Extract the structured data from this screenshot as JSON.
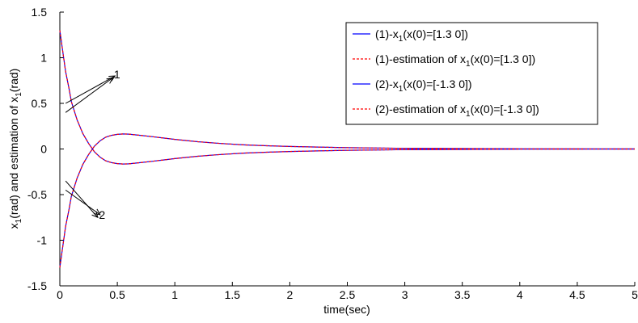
{
  "chart_data": {
    "type": "line",
    "title": "",
    "xlabel": "time(sec)",
    "ylabel": {
      "prefix": "x",
      "sub": "1",
      "suffix": "(rad) and estimation of x",
      "sub2": "1",
      "tail": "(rad)"
    },
    "xlim": [
      0,
      5
    ],
    "ylim": [
      -1.5,
      1.5
    ],
    "x_ticks": [
      {
        "v": 0,
        "label": "0"
      },
      {
        "v": 0.5,
        "label": "0.5"
      },
      {
        "v": 1,
        "label": "1"
      },
      {
        "v": 1.5,
        "label": "1.5"
      },
      {
        "v": 2,
        "label": "2"
      },
      {
        "v": 2.5,
        "label": "2.5"
      },
      {
        "v": 3,
        "label": "3"
      },
      {
        "v": 3.5,
        "label": "3.5"
      },
      {
        "v": 4,
        "label": "4"
      },
      {
        "v": 4.5,
        "label": "4.5"
      },
      {
        "v": 5,
        "label": "5"
      }
    ],
    "y_ticks": [
      {
        "v": -1.5,
        "label": "-1.5"
      },
      {
        "v": -1,
        "label": "-1"
      },
      {
        "v": -0.5,
        "label": "-0.5"
      },
      {
        "v": 0,
        "label": "0"
      },
      {
        "v": 0.5,
        "label": "0.5"
      },
      {
        "v": 1,
        "label": "1"
      },
      {
        "v": 1.5,
        "label": "1.5"
      }
    ],
    "grid": false,
    "legend_position": "top-right",
    "series": [
      {
        "id": "s1",
        "legend": {
          "prefix": "(1)-x",
          "sub": "1",
          "suffix": "(x(0)=[1.3 0])"
        },
        "color": "#0000ff",
        "dash": "solid",
        "x": [
          0,
          0.02,
          0.05,
          0.08,
          0.1,
          0.15,
          0.2,
          0.25,
          0.3,
          0.35,
          0.4,
          0.45,
          0.5,
          0.55,
          0.6,
          0.7,
          0.8,
          0.9,
          1.0,
          1.2,
          1.4,
          1.6,
          1.8,
          2.0,
          2.5,
          3.0,
          3.5,
          4.0,
          4.5,
          5.0
        ],
        "y": [
          1.3,
          1.12,
          0.85,
          0.66,
          0.52,
          0.32,
          0.17,
          0.06,
          -0.03,
          -0.09,
          -0.13,
          -0.15,
          -0.16,
          -0.165,
          -0.163,
          -0.15,
          -0.135,
          -0.12,
          -0.105,
          -0.08,
          -0.06,
          -0.045,
          -0.035,
          -0.027,
          -0.014,
          -0.007,
          -0.004,
          -0.002,
          -0.001,
          0
        ]
      },
      {
        "id": "s2",
        "legend": {
          "prefix": "(1)-estimation of x",
          "sub": "1",
          "suffix": "(x(0)=[1.3  0])"
        },
        "color": "#ff0000",
        "dash": "dashed",
        "x": [
          0,
          0.02,
          0.05,
          0.08,
          0.1,
          0.15,
          0.2,
          0.25,
          0.3,
          0.35,
          0.4,
          0.45,
          0.5,
          0.55,
          0.6,
          0.7,
          0.8,
          0.9,
          1.0,
          1.2,
          1.4,
          1.6,
          1.8,
          2.0,
          2.5,
          3.0,
          3.5,
          4.0,
          4.5,
          5.0
        ],
        "y": [
          1.3,
          1.12,
          0.85,
          0.66,
          0.52,
          0.32,
          0.17,
          0.06,
          -0.03,
          -0.09,
          -0.13,
          -0.15,
          -0.16,
          -0.165,
          -0.163,
          -0.15,
          -0.135,
          -0.12,
          -0.105,
          -0.08,
          -0.06,
          -0.045,
          -0.035,
          -0.027,
          -0.014,
          -0.007,
          -0.004,
          -0.002,
          -0.001,
          0
        ]
      },
      {
        "id": "s3",
        "legend": {
          "prefix": "(2)-x",
          "sub": "1",
          "suffix": "(x(0)=[-1.3 0])"
        },
        "color": "#0000ff",
        "dash": "solid",
        "x": [
          0,
          0.02,
          0.05,
          0.08,
          0.1,
          0.15,
          0.2,
          0.25,
          0.3,
          0.35,
          0.4,
          0.45,
          0.5,
          0.55,
          0.6,
          0.7,
          0.8,
          0.9,
          1.0,
          1.2,
          1.4,
          1.6,
          1.8,
          2.0,
          2.5,
          3.0,
          3.5,
          4.0,
          4.5,
          5.0
        ],
        "y": [
          -1.3,
          -1.12,
          -0.85,
          -0.66,
          -0.52,
          -0.32,
          -0.17,
          -0.06,
          0.03,
          0.09,
          0.13,
          0.15,
          0.16,
          0.165,
          0.163,
          0.15,
          0.135,
          0.12,
          0.105,
          0.08,
          0.06,
          0.045,
          0.035,
          0.027,
          0.014,
          0.007,
          0.004,
          0.002,
          0.001,
          0
        ]
      },
      {
        "id": "s4",
        "legend": {
          "prefix": "(2)-estimation of x",
          "sub": "1",
          "suffix": "(x(0)=[-1.3  0])"
        },
        "color": "#ff0000",
        "dash": "dashed",
        "x": [
          0,
          0.02,
          0.05,
          0.08,
          0.1,
          0.15,
          0.2,
          0.25,
          0.3,
          0.35,
          0.4,
          0.45,
          0.5,
          0.55,
          0.6,
          0.7,
          0.8,
          0.9,
          1.0,
          1.2,
          1.4,
          1.6,
          1.8,
          2.0,
          2.5,
          3.0,
          3.5,
          4.0,
          4.5,
          5.0
        ],
        "y": [
          -1.3,
          -1.12,
          -0.85,
          -0.66,
          -0.52,
          -0.32,
          -0.17,
          -0.06,
          0.03,
          0.09,
          0.13,
          0.15,
          0.16,
          0.165,
          0.163,
          0.15,
          0.135,
          0.12,
          0.105,
          0.08,
          0.06,
          0.045,
          0.035,
          0.027,
          0.014,
          0.007,
          0.004,
          0.002,
          0.001,
          0
        ]
      }
    ],
    "annotations": [
      {
        "label": "1",
        "text_at": [
          0.47,
          0.82
        ],
        "arrows": [
          {
            "from": [
              0.05,
              0.4
            ],
            "to": [
              0.46,
              0.78
            ]
          },
          {
            "from": [
              0.05,
              0.5
            ],
            "to": [
              0.48,
              0.8
            ]
          }
        ]
      },
      {
        "label": "2",
        "text_at": [
          0.34,
          -0.72
        ],
        "arrows": [
          {
            "from": [
              0.05,
              -0.35
            ],
            "to": [
              0.33,
              -0.75
            ]
          },
          {
            "from": [
              0.05,
              -0.45
            ],
            "to": [
              0.35,
              -0.72
            ]
          }
        ]
      }
    ]
  }
}
